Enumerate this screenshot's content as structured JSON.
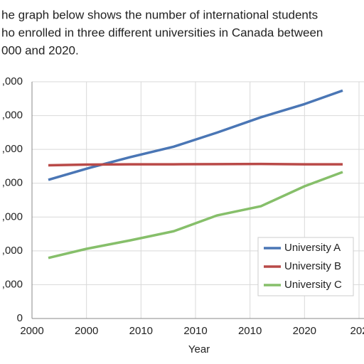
{
  "chart_data": {
    "type": "line",
    "title": [
      "he graph below shows the number of international students",
      "ho enrolled in three different universities in Canada between",
      "000 and 2020."
    ],
    "x_label": "Year",
    "x": [
      1996.5,
      2000,
      2004,
      2008,
      2012,
      2016,
      2020,
      2023.5
    ],
    "series": [
      {
        "name": "University A",
        "color": "#4a76b5",
        "values": [
          4100,
          4430,
          4770,
          5080,
          5500,
          5950,
          6340,
          6740
        ]
      },
      {
        "name": "University B",
        "color": "#b94a48",
        "values": [
          4530,
          4550,
          4560,
          4560,
          4565,
          4570,
          4560,
          4560
        ]
      },
      {
        "name": "University C",
        "color": "#86bf6a",
        "values": [
          1790,
          2060,
          2310,
          2580,
          3050,
          3320,
          3910,
          4330
        ]
      }
    ],
    "xlim": [
      1995,
      2025
    ],
    "xticks": [
      {
        "value": 1995,
        "label": "2000"
      },
      {
        "value": 2000,
        "label": "2000"
      },
      {
        "value": 2005,
        "label": "2010"
      },
      {
        "value": 2010,
        "label": "2010"
      },
      {
        "value": 2015,
        "label": "2010"
      },
      {
        "value": 2020,
        "label": "2020"
      },
      {
        "value": 2025,
        "label": "202"
      }
    ],
    "ylim": [
      0,
      7000
    ],
    "yticks": [
      0,
      {
        "value": 1000,
        "label": ",000"
      },
      {
        "value": 2000,
        "label": ",000"
      },
      {
        "value": 3000,
        "label": ",000"
      },
      {
        "value": 4000,
        "label": ",000"
      },
      {
        "value": 5000,
        "label": ",000"
      },
      {
        "value": 6000,
        "label": ",000"
      },
      {
        "value": 7000,
        "label": ",000"
      }
    ],
    "grid": true,
    "legend": "lower right"
  }
}
